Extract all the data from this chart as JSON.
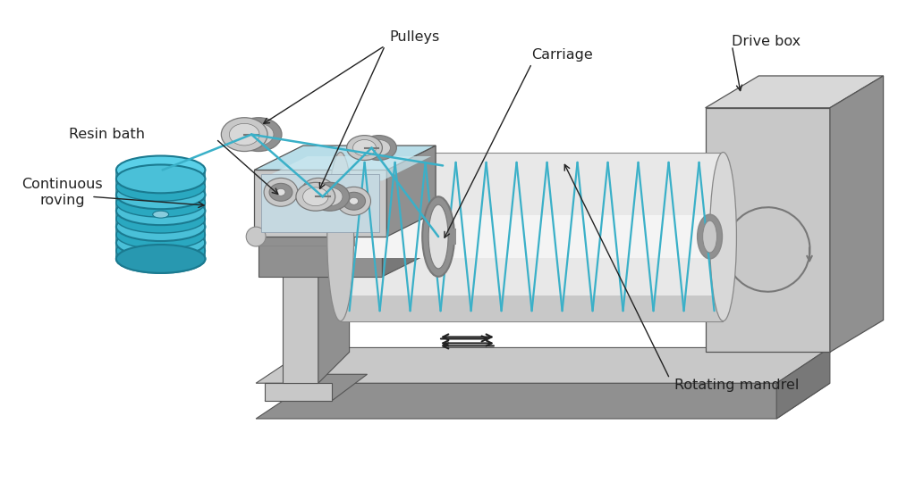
{
  "background_color": "#ffffff",
  "labels": {
    "pulleys": "Pulleys",
    "carriage": "Carriage",
    "drive_box": "Drive box",
    "continuous_roving": "Continuous\nroving",
    "resin_bath": "Resin bath",
    "rotating_mandrel": "Rotating mandrel"
  },
  "blue": "#3ab0c8",
  "blue_dark": "#1a7a90",
  "gray1": "#b0b0b0",
  "gray2": "#c8c8c8",
  "gray3": "#909090",
  "gray4": "#d8d8d8",
  "gray5": "#787878",
  "edge": "#555555",
  "arrow_color": "#222222",
  "font_size": 11.5
}
